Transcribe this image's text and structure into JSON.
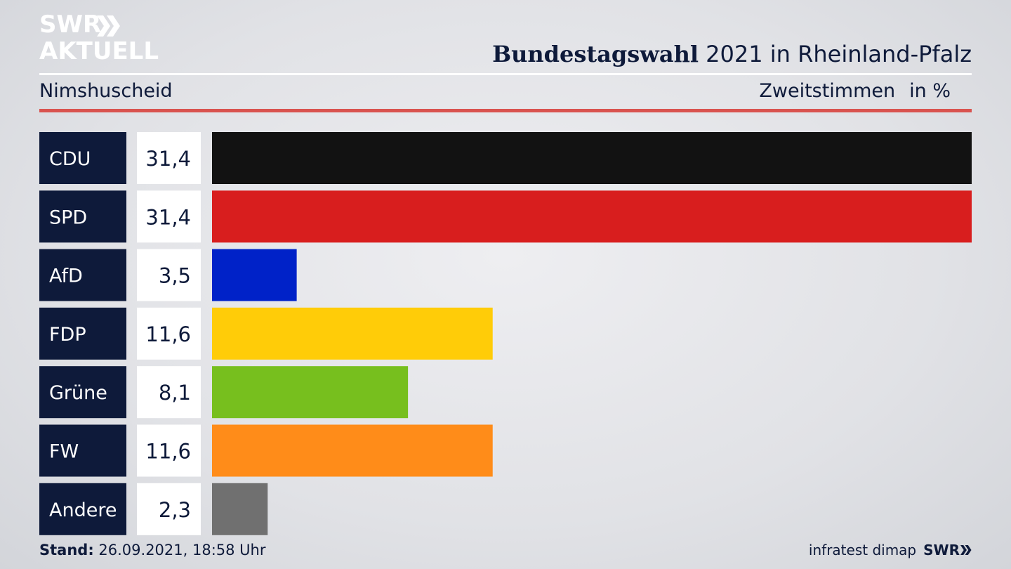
{
  "logo": {
    "line1": "SWR",
    "line2": "AKTUELL"
  },
  "header": {
    "title_bold": "Bundestagswahl",
    "title_rest": " 2021 in Rheinland-Pfalz",
    "subtitle": "Nimshuscheid",
    "unit_label": "Zweitstimmen",
    "unit_suffix": "in %"
  },
  "chart_data": {
    "type": "bar",
    "orientation": "horizontal",
    "title": "Bundestagswahl 2021 in Rheinland-Pfalz",
    "subtitle": "Nimshuscheid",
    "ylabel": "Zweitstimmen in %",
    "categories": [
      "CDU",
      "SPD",
      "AfD",
      "FDP",
      "Grüne",
      "FW",
      "Andere"
    ],
    "values": [
      31.4,
      31.4,
      3.5,
      11.6,
      8.1,
      11.6,
      2.3
    ],
    "value_labels": [
      "31,4",
      "31,4",
      "3,5",
      "11,6",
      "8,1",
      "11,6",
      "2,3"
    ],
    "colors": [
      "#121212",
      "#d81e1e",
      "#0022c8",
      "#ffcc08",
      "#77bf1e",
      "#ff8c19",
      "#707070"
    ],
    "xlim": [
      0,
      31.4
    ],
    "grid": false,
    "legend": "none"
  },
  "footer": {
    "stand_label": "Stand:",
    "stand_value": " 26.09.2021, 18:58 Uhr",
    "source": "infratest dimap",
    "brand": "SWR"
  },
  "style": {
    "label_bg": "#0e1a3a",
    "accent_red": "#d9534f"
  }
}
